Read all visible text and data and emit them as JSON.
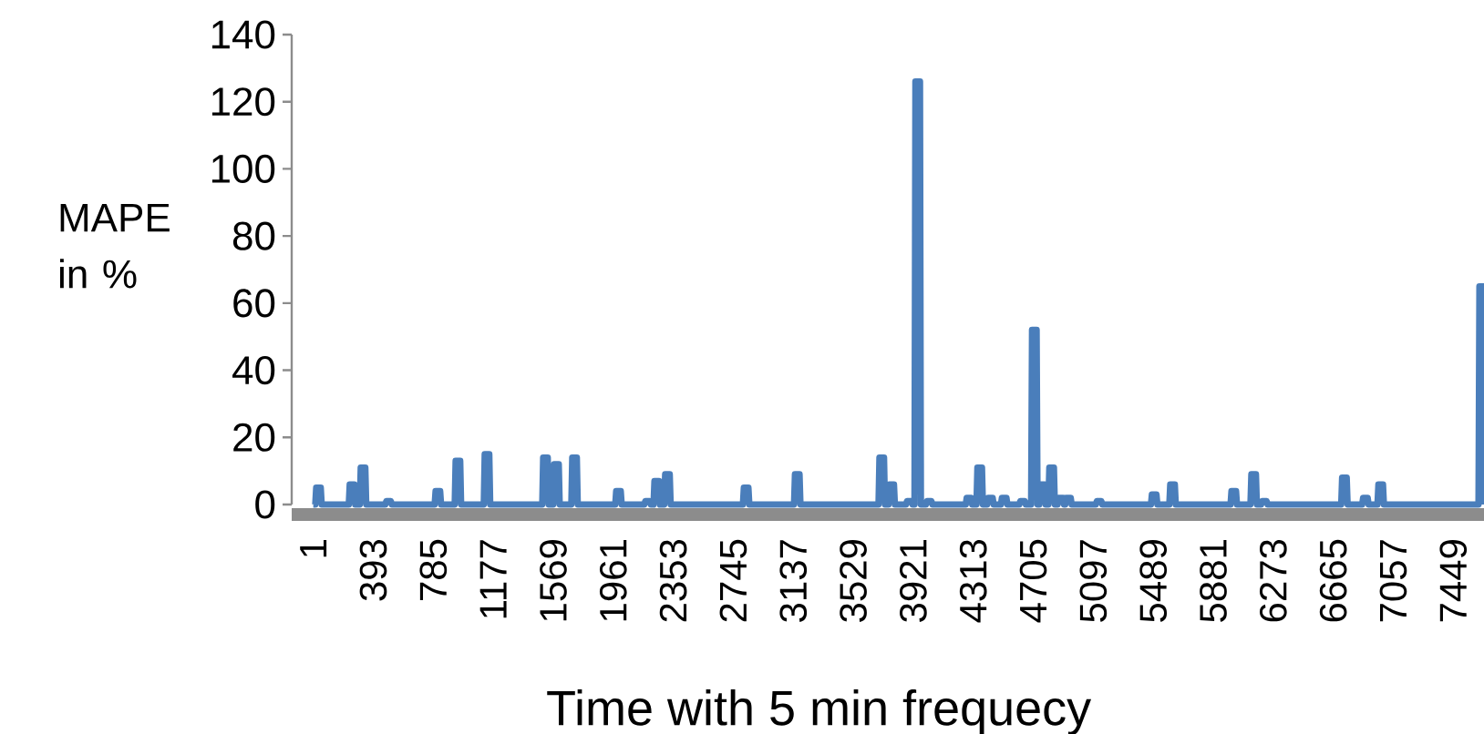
{
  "chart_data": {
    "type": "line",
    "xlabel": "Time with 5 min frequecy",
    "ylabel": "MAPE in %",
    "color": "#4a7ebb",
    "marker": "none",
    "line_style": "solid",
    "xlim": [
      -140,
      7650
    ],
    "ylim": [
      0,
      140
    ],
    "xticks": [
      1,
      393,
      785,
      1177,
      1569,
      1961,
      2353,
      2745,
      3137,
      3529,
      3921,
      4313,
      4705,
      5097,
      5489,
      5881,
      6273,
      6665,
      7057,
      7449
    ],
    "yticks": [
      0,
      20,
      40,
      60,
      80,
      100,
      120,
      140
    ],
    "x": [
      1,
      14,
      20,
      50,
      56,
      233,
      239,
      269,
      275,
      305,
      311,
      341,
      347,
      472,
      478,
      508,
      514,
      794,
      800,
      830,
      836,
      925,
      931,
      961,
      967,
      1115,
      1121,
      1151,
      1157,
      1497,
      1503,
      1533,
      1539,
      1569,
      1575,
      1605,
      1611,
      1687,
      1693,
      1723,
      1729,
      1974,
      1980,
      2010,
      2016,
      2164,
      2170,
      2200,
      2206,
      2224,
      2230,
      2260,
      2266,
      2294,
      2300,
      2330,
      2336,
      2808,
      2814,
      2844,
      2850,
      3142,
      3148,
      3178,
      3184,
      3694,
      3700,
      3730,
      3736,
      3759,
      3765,
      3795,
      3801,
      3874,
      3880,
      3910,
      3916,
      3929,
      3935,
      3965,
      3971,
      4004,
      4010,
      4040,
      4046,
      4264,
      4270,
      4300,
      4306,
      4334,
      4340,
      4370,
      4376,
      4404,
      4410,
      4440,
      4446,
      4494,
      4500,
      4530,
      4536,
      4614,
      4620,
      4650,
      4656,
      4691,
      4697,
      4727,
      4733,
      4744,
      4750,
      4780,
      4786,
      4804,
      4810,
      4840,
      4846,
      4864,
      4870,
      4900,
      4906,
      4914,
      4920,
      4950,
      4956,
      5114,
      5120,
      5150,
      5156,
      5474,
      5480,
      5510,
      5516,
      5594,
      5600,
      5630,
      5636,
      5994,
      6000,
      6030,
      6036,
      6124,
      6130,
      6160,
      6166,
      6194,
      6200,
      6230,
      6236,
      6717,
      6723,
      6753,
      6759,
      6854,
      6860,
      6890,
      6896,
      6954,
      6960,
      6990,
      6996,
      7614,
      7620,
      7644,
      7650
    ],
    "values": [
      0,
      0,
      5,
      5,
      0,
      0,
      6,
      6,
      0,
      0,
      11,
      11,
      0,
      0,
      1,
      1,
      0,
      0,
      4,
      4,
      0,
      0,
      13,
      13,
      0,
      0,
      15,
      15,
      0,
      0,
      14,
      14,
      0,
      0,
      12,
      12,
      0,
      0,
      14,
      14,
      0,
      0,
      4,
      4,
      0,
      0,
      1,
      1,
      0,
      0,
      7,
      7,
      0,
      0,
      9,
      9,
      0,
      0,
      5,
      5,
      0,
      0,
      9,
      9,
      0,
      0,
      14,
      14,
      0,
      0,
      6,
      6,
      0,
      0,
      1,
      1,
      0,
      0,
      126,
      126,
      0,
      0,
      1,
      1,
      0,
      0,
      2,
      2,
      0,
      0,
      11,
      11,
      0,
      0,
      2,
      2,
      0,
      0,
      2,
      2,
      0,
      0,
      1,
      1,
      0,
      0,
      52,
      52,
      0,
      0,
      6,
      6,
      0,
      0,
      11,
      11,
      0,
      0,
      2,
      2,
      0,
      0,
      2,
      2,
      0,
      0,
      1,
      1,
      0,
      0,
      3,
      3,
      0,
      0,
      6,
      6,
      0,
      0,
      4,
      4,
      0,
      0,
      9,
      9,
      0,
      0,
      1,
      1,
      0,
      0,
      8,
      8,
      0,
      0,
      2,
      2,
      0,
      0,
      6,
      6,
      0,
      0,
      65,
      65,
      0
    ]
  }
}
